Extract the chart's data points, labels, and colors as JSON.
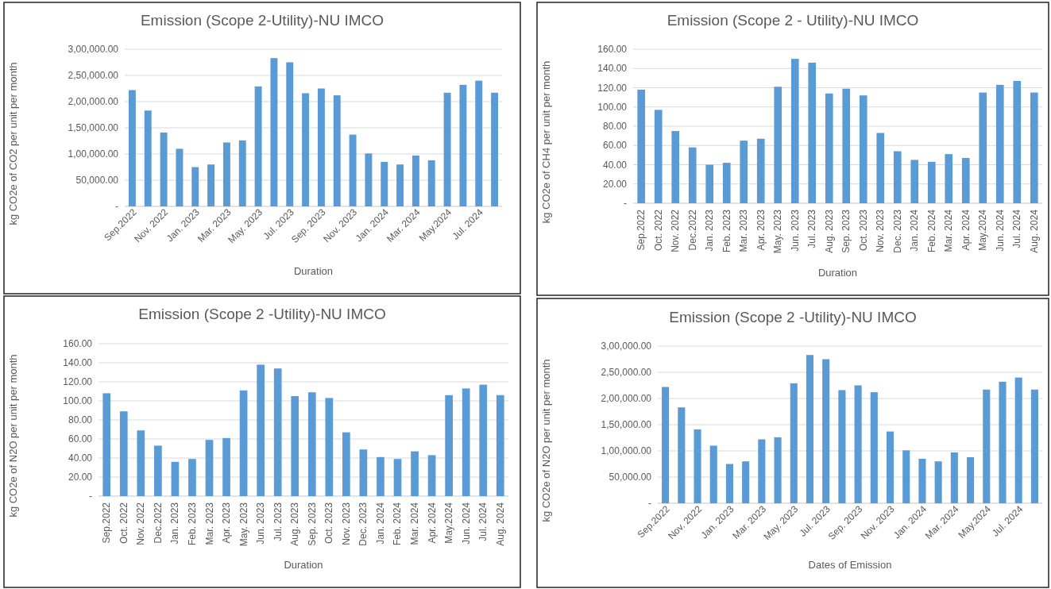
{
  "chart_data": [
    {
      "type": "bar",
      "title": "Emission (Scope 2-Utility)-NU IMCO",
      "xlabel": "Duration",
      "ylabel": "kg CO2e of CO2 per unit per month",
      "color": "#5b9bd5",
      "grid": "y",
      "categories": [
        "Sep.2022",
        null,
        "Nov. 2022",
        null,
        "Jan. 2023",
        null,
        "Mar. 2023",
        null,
        "May. 2023",
        null,
        "Jul. 2023",
        null,
        "Sep. 2023",
        null,
        "Nov. 2023",
        null,
        "Jan. 2024",
        null,
        "Mar. 2024",
        null,
        "May.2024",
        null,
        "Jul. 2024",
        null
      ],
      "values": [
        222000,
        183000,
        141000,
        110000,
        75000,
        80000,
        122000,
        126000,
        229000,
        283000,
        275000,
        216000,
        225000,
        212000,
        137000,
        101000,
        85000,
        80000,
        97000,
        88000,
        217000,
        232000,
        240000,
        217000
      ],
      "ylim": [
        0,
        300000
      ],
      "yticks": [
        {
          "value": 0,
          "label": "-"
        },
        {
          "value": 50000,
          "label": "50,000.00"
        },
        {
          "value": 100000,
          "label": "1,00,000.00"
        },
        {
          "value": 150000,
          "label": "1,50,000.00"
        },
        {
          "value": 200000,
          "label": "2,00,000.00"
        },
        {
          "value": 250000,
          "label": "2,50,000.00"
        },
        {
          "value": 300000,
          "label": "3,00,000.00"
        }
      ]
    },
    {
      "type": "bar",
      "title": "Emission (Scope 2 - Utility)-NU IMCO",
      "xlabel": "Duration",
      "ylabel": "kg CO2e of CH4 per unit per month",
      "color": "#5b9bd5",
      "grid": "y",
      "categories": [
        "Sep.2022",
        "Oct. 2022",
        "Nov. 2022",
        "Dec.2022",
        "Jan. 2023",
        "Feb. 2023",
        "Mar. 2023",
        "Apr. 2023",
        "May. 2023",
        "Jun. 2023",
        "Jul. 2023",
        "Aug. 2023",
        "Sep. 2023",
        "Oct. 2023",
        "Nov. 2023",
        "Dec. 2023",
        "Jan. 2024",
        "Feb. 2024",
        "Mar. 2024",
        "Apr. 2024",
        "May.2024",
        "Jun. 2024",
        "Jul. 2024",
        "Aug. 2024"
      ],
      "values": [
        118,
        97,
        75,
        58,
        40,
        42,
        65,
        67,
        121,
        150,
        146,
        114,
        119,
        112,
        73,
        54,
        45,
        43,
        51,
        47,
        115,
        123,
        127,
        115
      ],
      "ylim": [
        0,
        160
      ],
      "yticks": [
        {
          "value": 0,
          "label": "-"
        },
        {
          "value": 20,
          "label": "20.00"
        },
        {
          "value": 40,
          "label": "40.00"
        },
        {
          "value": 60,
          "label": "60.00"
        },
        {
          "value": 80,
          "label": "80.00"
        },
        {
          "value": 100,
          "label": "100.00"
        },
        {
          "value": 120,
          "label": "120.00"
        },
        {
          "value": 140,
          "label": "140.00"
        },
        {
          "value": 160,
          "label": "160.00"
        }
      ]
    },
    {
      "type": "bar",
      "title": "Emission (Scope 2 -Utility)-NU IMCO",
      "xlabel": "Duration",
      "ylabel": "kg CO2e of N2O per unit per month",
      "color": "#5b9bd5",
      "grid": "y",
      "categories": [
        "Sep.2022",
        "Oct. 2022",
        "Nov. 2022",
        "Dec.2022",
        "Jan. 2023",
        "Feb. 2023",
        "Mar. 2023",
        "Apr. 2023",
        "May. 2023",
        "Jun. 2023",
        "Jul. 2023",
        "Aug. 2023",
        "Sep. 2023",
        "Oct. 2023",
        "Nov. 2023",
        "Dec. 2023",
        "Jan. 2024",
        "Feb. 2024",
        "Mar. 2024",
        "Apr. 2024",
        "May.2024",
        "Jun. 2024",
        "Jul. 2024",
        "Aug. 2024"
      ],
      "values": [
        108,
        89,
        69,
        53,
        36,
        39,
        59,
        61,
        111,
        138,
        134,
        105,
        109,
        103,
        67,
        49,
        41,
        39,
        47,
        43,
        106,
        113,
        117,
        106
      ],
      "ylim": [
        0,
        160
      ],
      "yticks": [
        {
          "value": 0,
          "label": "-"
        },
        {
          "value": 20,
          "label": "20.00"
        },
        {
          "value": 40,
          "label": "40.00"
        },
        {
          "value": 60,
          "label": "60.00"
        },
        {
          "value": 80,
          "label": "80.00"
        },
        {
          "value": 100,
          "label": "100.00"
        },
        {
          "value": 120,
          "label": "120.00"
        },
        {
          "value": 140,
          "label": "140.00"
        },
        {
          "value": 160,
          "label": "160.00"
        }
      ]
    },
    {
      "type": "bar",
      "title": "Emission (Scope 2 -Utility)-NU IMCO",
      "xlabel": "Dates of Emission",
      "ylabel": "kg CO2e of N2O per unit per month",
      "color": "#5b9bd5",
      "grid": "y",
      "categories": [
        "Sep.2022",
        null,
        "Nov. 2022",
        null,
        "Jan. 2023",
        null,
        "Mar. 2023",
        null,
        "May. 2023",
        null,
        "Jul. 2023",
        null,
        "Sep. 2023",
        null,
        "Nov. 2023",
        null,
        "Jan. 2024",
        null,
        "Mar. 2024",
        null,
        "May.2024",
        null,
        "Jul. 2024",
        null
      ],
      "values": [
        222000,
        183000,
        141000,
        110000,
        75000,
        80000,
        122000,
        126000,
        229000,
        283000,
        275000,
        216000,
        225000,
        212000,
        137000,
        101000,
        85000,
        80000,
        97000,
        88000,
        217000,
        232000,
        240000,
        217000
      ],
      "ylim": [
        0,
        300000
      ],
      "yticks": [
        {
          "value": 0,
          "label": "-"
        },
        {
          "value": 50000,
          "label": "50,000.00"
        },
        {
          "value": 100000,
          "label": "1,00,000.00"
        },
        {
          "value": 150000,
          "label": "1,50,000.00"
        },
        {
          "value": 200000,
          "label": "2,00,000.00"
        },
        {
          "value": 250000,
          "label": "2,50,000.00"
        },
        {
          "value": 300000,
          "label": "3,00,000.00"
        }
      ]
    }
  ]
}
